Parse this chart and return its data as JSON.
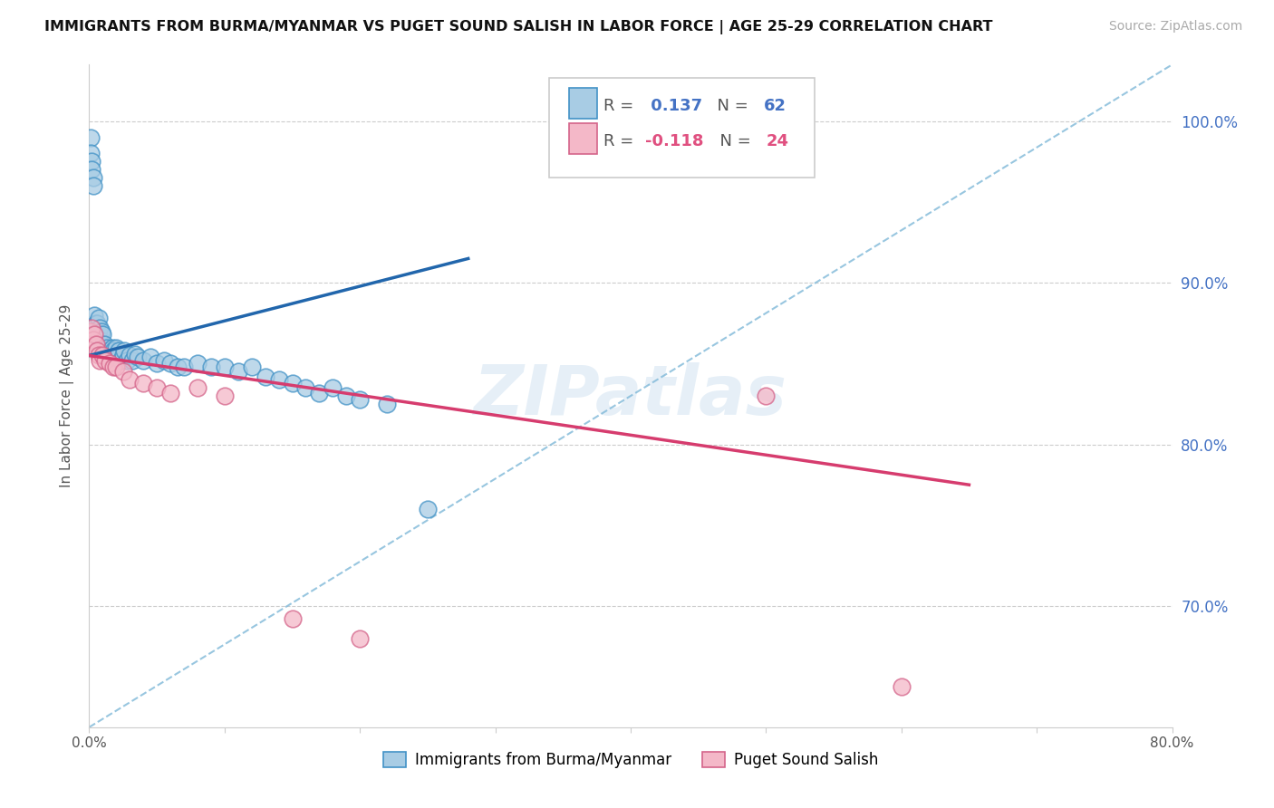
{
  "title": "IMMIGRANTS FROM BURMA/MYANMAR VS PUGET SOUND SALISH IN LABOR FORCE | AGE 25-29 CORRELATION CHART",
  "source": "Source: ZipAtlas.com",
  "ylabel": "In Labor Force | Age 25-29",
  "legend1_label": "Immigrants from Burma/Myanmar",
  "legend2_label": "Puget Sound Salish",
  "r1": 0.137,
  "n1": 62,
  "r2": -0.118,
  "n2": 24,
  "blue_color": "#a8cce4",
  "blue_edge": "#4292c6",
  "pink_color": "#f4b8c8",
  "pink_edge": "#d4648a",
  "xlim": [
    0.0,
    0.8
  ],
  "ylim": [
    0.625,
    1.035
  ],
  "ytick_positions": [
    0.7,
    0.8,
    0.9,
    1.0
  ],
  "ytick_labels": [
    "70.0%",
    "80.0%",
    "90.0%",
    "100.0%"
  ],
  "xtick_positions": [
    0.0,
    0.1,
    0.2,
    0.3,
    0.4,
    0.5,
    0.6,
    0.7,
    0.8
  ],
  "xtick_labels": [
    "0.0%",
    "",
    "",
    "",
    "",
    "",
    "",
    "",
    "80.0%"
  ],
  "blue_line_x": [
    0.0,
    0.28
  ],
  "blue_line_y": [
    0.855,
    0.915
  ],
  "pink_line_x": [
    0.0,
    0.65
  ],
  "pink_line_y": [
    0.855,
    0.775
  ],
  "dash_line_x": [
    0.0,
    0.8
  ],
  "dash_line_y": [
    0.625,
    1.035
  ],
  "blue_scatter_x": [
    0.001,
    0.001,
    0.002,
    0.002,
    0.003,
    0.003,
    0.004,
    0.004,
    0.005,
    0.005,
    0.006,
    0.006,
    0.007,
    0.007,
    0.008,
    0.008,
    0.009,
    0.009,
    0.01,
    0.01,
    0.011,
    0.012,
    0.013,
    0.014,
    0.015,
    0.016,
    0.017,
    0.018,
    0.019,
    0.02,
    0.021,
    0.022,
    0.023,
    0.025,
    0.026,
    0.028,
    0.03,
    0.032,
    0.034,
    0.036,
    0.04,
    0.045,
    0.05,
    0.055,
    0.06,
    0.065,
    0.07,
    0.08,
    0.09,
    0.1,
    0.11,
    0.12,
    0.13,
    0.14,
    0.15,
    0.16,
    0.17,
    0.18,
    0.19,
    0.2,
    0.22,
    0.25
  ],
  "blue_scatter_y": [
    0.99,
    0.98,
    0.975,
    0.97,
    0.965,
    0.96,
    0.88,
    0.87,
    0.875,
    0.87,
    0.875,
    0.87,
    0.878,
    0.868,
    0.872,
    0.865,
    0.87,
    0.86,
    0.868,
    0.858,
    0.862,
    0.858,
    0.86,
    0.856,
    0.858,
    0.855,
    0.86,
    0.858,
    0.855,
    0.86,
    0.855,
    0.858,
    0.852,
    0.855,
    0.858,
    0.852,
    0.855,
    0.852,
    0.856,
    0.854,
    0.852,
    0.854,
    0.85,
    0.852,
    0.85,
    0.848,
    0.848,
    0.85,
    0.848,
    0.848,
    0.845,
    0.848,
    0.842,
    0.84,
    0.838,
    0.835,
    0.832,
    0.835,
    0.83,
    0.828,
    0.825,
    0.76
  ],
  "pink_scatter_x": [
    0.001,
    0.002,
    0.003,
    0.004,
    0.005,
    0.006,
    0.007,
    0.008,
    0.01,
    0.012,
    0.015,
    0.018,
    0.02,
    0.025,
    0.03,
    0.04,
    0.05,
    0.06,
    0.08,
    0.1,
    0.15,
    0.2,
    0.5,
    0.6
  ],
  "pink_scatter_y": [
    0.87,
    0.872,
    0.865,
    0.868,
    0.862,
    0.858,
    0.855,
    0.852,
    0.855,
    0.852,
    0.85,
    0.848,
    0.848,
    0.845,
    0.84,
    0.838,
    0.835,
    0.832,
    0.835,
    0.83,
    0.692,
    0.68,
    0.83,
    0.65
  ]
}
